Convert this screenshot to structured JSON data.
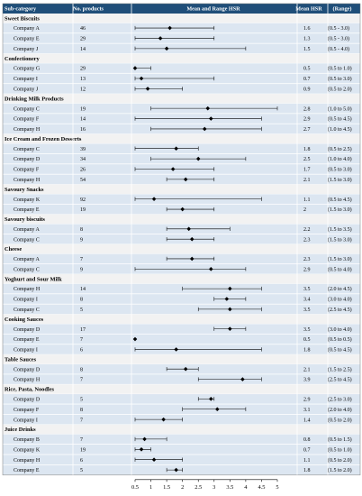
{
  "chart_data": {
    "type": "forest",
    "columns": [
      "Sub-category",
      "No. products",
      "Mean and Range HSR",
      "Mean HSR",
      "(Range)"
    ],
    "x_ticks": [
      "0.5",
      "1",
      "1.5",
      "2",
      "2.5",
      "3",
      "3.5",
      "4",
      "4.5",
      "5"
    ],
    "xlim": [
      0.5,
      5
    ],
    "groups": [
      {
        "category": "Sweet Biscuits",
        "rows": [
          {
            "company": "Company A",
            "n": "46",
            "mean": 1.6,
            "low": 0.5,
            "high": 3.0,
            "mean_label": "1.6",
            "range_label": "(0.5 - 3.0)"
          },
          {
            "company": "Company E",
            "n": "29",
            "mean": 1.3,
            "low": 0.5,
            "high": 3.0,
            "mean_label": "1.3",
            "range_label": "(0.5 - 3.0)"
          },
          {
            "company": "Company J",
            "n": "14",
            "mean": 1.5,
            "low": 0.5,
            "high": 4.0,
            "mean_label": "1.5",
            "range_label": "(0.5 - 4.0)"
          }
        ]
      },
      {
        "category": "Confectionery",
        "rows": [
          {
            "company": "Company G",
            "n": "29",
            "mean": 0.5,
            "low": 0.5,
            "high": 1.0,
            "mean_label": "0.5",
            "range_label": "(0.5 to 1.0)"
          },
          {
            "company": "Company I",
            "n": "13",
            "mean": 0.7,
            "low": 0.5,
            "high": 3.0,
            "mean_label": "0.7",
            "range_label": "(0.5 to 3.0)"
          },
          {
            "company": "Company J",
            "n": "12",
            "mean": 0.9,
            "low": 0.5,
            "high": 2.0,
            "mean_label": "0.9",
            "range_label": "(0.5 to 2.0)"
          }
        ]
      },
      {
        "category": "Drinking Milk Products",
        "rows": [
          {
            "company": "Company C",
            "n": "19",
            "mean": 2.8,
            "low": 1.0,
            "high": 5.0,
            "mean_label": "2.8",
            "range_label": "(1.0 to 5.0)"
          },
          {
            "company": "Company F",
            "n": "14",
            "mean": 2.9,
            "low": 0.5,
            "high": 4.5,
            "mean_label": "2.9",
            "range_label": "(0.5 to 4.5)"
          },
          {
            "company": "Company H",
            "n": "16",
            "mean": 2.7,
            "low": 1.0,
            "high": 4.5,
            "mean_label": "2.7",
            "range_label": "(1.0 to 4.5)"
          }
        ]
      },
      {
        "category": "Ice Cream and Frozen Desserts",
        "rows": [
          {
            "company": "Company C",
            "n": "39",
            "mean": 1.8,
            "low": 0.5,
            "high": 2.5,
            "mean_label": "1.8",
            "range_label": "(0.5 to 2.5)"
          },
          {
            "company": "Company D",
            "n": "34",
            "mean": 2.5,
            "low": 1.0,
            "high": 4.0,
            "mean_label": "2.5",
            "range_label": "(1.0 to 4.0)"
          },
          {
            "company": "Company F",
            "n": "26",
            "mean": 1.7,
            "low": 0.5,
            "high": 3.0,
            "mean_label": "1.7",
            "range_label": "(0.5 to 3.0)"
          },
          {
            "company": "Company H",
            "n": "54",
            "mean": 2.1,
            "low": 1.5,
            "high": 3.0,
            "mean_label": "2.1",
            "range_label": "(1.5 to 3.0)"
          }
        ]
      },
      {
        "category": "Savoury Snacks",
        "rows": [
          {
            "company": "Company K",
            "n": "92",
            "mean": 1.1,
            "low": 0.5,
            "high": 4.5,
            "mean_label": "1.1",
            "range_label": "(0.5 to 4.5)"
          },
          {
            "company": "Company E",
            "n": "19",
            "mean": 2.0,
            "low": 1.5,
            "high": 3.0,
            "mean_label": "2",
            "range_label": "(1.5 to 3.0)"
          }
        ]
      },
      {
        "category": "Savoury biscuits",
        "rows": [
          {
            "company": "Company A",
            "n": "8",
            "mean": 2.2,
            "low": 1.5,
            "high": 3.5,
            "mean_label": "2.2",
            "range_label": "(1.5 to 3.5)"
          },
          {
            "company": "Company C",
            "n": "9",
            "mean": 2.3,
            "low": 1.5,
            "high": 3.0,
            "mean_label": "2.3",
            "range_label": "(1.5 to 3.0)"
          }
        ]
      },
      {
        "category": "Cheese",
        "rows": [
          {
            "company": "Company A",
            "n": "7",
            "mean": 2.3,
            "low": 1.5,
            "high": 3.0,
            "mean_label": "2.3",
            "range_label": "(1.5 to 3.0)"
          },
          {
            "company": "Company C",
            "n": "9",
            "mean": 2.9,
            "low": 0.5,
            "high": 4.0,
            "mean_label": "2.9",
            "range_label": "(0.5 to 4.0)"
          }
        ]
      },
      {
        "category": "Yoghurt and Sour Milk",
        "rows": [
          {
            "company": "Company H",
            "n": "14",
            "mean": 3.5,
            "low": 2.0,
            "high": 4.5,
            "mean_label": "3.5",
            "range_label": "(2.0 to 4.5)"
          },
          {
            "company": "Company I",
            "n": "8",
            "mean": 3.4,
            "low": 3.0,
            "high": 4.0,
            "mean_label": "3.4",
            "range_label": "(3.0 to 4.0)"
          },
          {
            "company": "Company C",
            "n": "5",
            "mean": 3.5,
            "low": 2.5,
            "high": 4.5,
            "mean_label": "3.5",
            "range_label": "(2.5 to 4.5)"
          }
        ]
      },
      {
        "category": "Cooking Sauces",
        "rows": [
          {
            "company": "Company D",
            "n": "17",
            "mean": 3.5,
            "low": 3.0,
            "high": 4.0,
            "mean_label": "3.5",
            "range_label": "(3.0 to 4.0)"
          },
          {
            "company": "Company E",
            "n": "7",
            "mean": 0.5,
            "low": 0.5,
            "high": 0.5,
            "mean_label": "0.5",
            "range_label": "(0.5 to 0.5)"
          },
          {
            "company": "Company I",
            "n": "6",
            "mean": 1.8,
            "low": 0.5,
            "high": 4.5,
            "mean_label": "1.8",
            "range_label": "(0.5 to 4.5)"
          }
        ]
      },
      {
        "category": "Table Sauces",
        "rows": [
          {
            "company": "Company D",
            "n": "8",
            "mean": 2.1,
            "low": 1.5,
            "high": 2.5,
            "mean_label": "2.1",
            "range_label": "(1.5 to 2.5)"
          },
          {
            "company": "Company H",
            "n": "7",
            "mean": 3.9,
            "low": 2.5,
            "high": 4.5,
            "mean_label": "3.9",
            "range_label": "(2.5 to 4.5)"
          }
        ]
      },
      {
        "category": "Rice, Pasta, Noodles",
        "rows": [
          {
            "company": "Company D",
            "n": "5",
            "mean": 2.9,
            "low": 2.5,
            "high": 3.0,
            "mean_label": "2.9",
            "range_label": "(2.5 to 3.0)"
          },
          {
            "company": "Company F",
            "n": "8",
            "mean": 3.1,
            "low": 2.0,
            "high": 4.0,
            "mean_label": "3.1",
            "range_label": "(2.0 to 4.0)"
          },
          {
            "company": "Company I",
            "n": "7",
            "mean": 1.4,
            "low": 0.5,
            "high": 2.0,
            "mean_label": "1.4",
            "range_label": "(0.5 to 2.0)"
          }
        ]
      },
      {
        "category": "Juice Drinks",
        "rows": [
          {
            "company": "Company B",
            "n": "7",
            "mean": 0.8,
            "low": 0.5,
            "high": 1.5,
            "mean_label": "0.8",
            "range_label": "(0.5 to 1.5)"
          },
          {
            "company": "Company K",
            "n": "19",
            "mean": 0.7,
            "low": 0.5,
            "high": 1.0,
            "mean_label": "0.7",
            "range_label": "(0.5 to 1.0)"
          },
          {
            "company": "Company H",
            "n": "6",
            "mean": 1.1,
            "low": 0.5,
            "high": 2.0,
            "mean_label": "1.1",
            "range_label": "(0.5 to 2.0)"
          },
          {
            "company": "Company E",
            "n": "5",
            "mean": 1.8,
            "low": 1.5,
            "high": 2.0,
            "mean_label": "1.8",
            "range_label": "(1.5 to 2.0)"
          }
        ]
      }
    ],
    "colors": {
      "header_bg": "#1f4e79",
      "category_bg": "#f2f2f2",
      "row_bg": "#dce6f1",
      "marker": "#000000"
    },
    "grid": false,
    "legend": "none"
  }
}
